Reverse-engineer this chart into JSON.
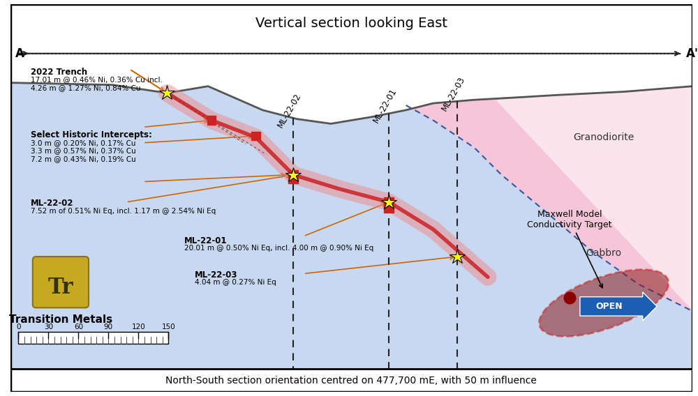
{
  "title": "Vertical section looking East",
  "subtitle": "North-South section orientation centred on 477,700 mE, with 50 m influence",
  "fig_width": 10.0,
  "fig_height": 5.68,
  "bg_color": "#fce4ec",
  "gabbro_color": "#c8d8f0",
  "granodiorite_color": "#f5c6d8",
  "surface_line_color": "#555555",
  "aa_line_color": "#222222",
  "drill_line_color": "#222222",
  "red_zone_color": "#cc2222",
  "red_zone_alpha": 0.85,
  "pink_halo_color": "#f08080",
  "pink_halo_alpha": 0.45,
  "conductivity_ellipse_color": "#8B1A1A",
  "conductivity_ellipse_alpha": 0.55,
  "conductivity_ellipse_edge": "#cc2222",
  "open_arrow_color": "#1a5fb4",
  "trench_label": "2022 Trench",
  "trench_data": "17.01 m @ 0.46% Ni, 0.36% Cu incl.\n4.26 m @ 1.27% Ni, 0.84% Cu",
  "historic_label": "Select Historic Intercepts:",
  "historic_data": "3.0 m @ 0.20% Ni, 0.17% Cu\n3.3 m @ 0.57% Ni, 0.37% Cu\n7.2 m @ 0.43% Ni, 0.19% Cu",
  "ml2202_label": "ML-22-02",
  "ml2202_data": "7.52 m of 0.51% Ni Eq, incl. 1.17 m @ 2.54% Ni Eq",
  "ml2201_label": "ML-22-01",
  "ml2201_data": "20.01 m @ 0.50% Ni Eq, incl. 4.00 m @ 0.90% Ni Eq",
  "ml2203_label": "ML-22-03",
  "ml2203_data": "4.04 m @ 0.27% Ni Eq",
  "maxwell_label": "Maxwell Model\nConductivity Target",
  "open_label": "OPEN"
}
